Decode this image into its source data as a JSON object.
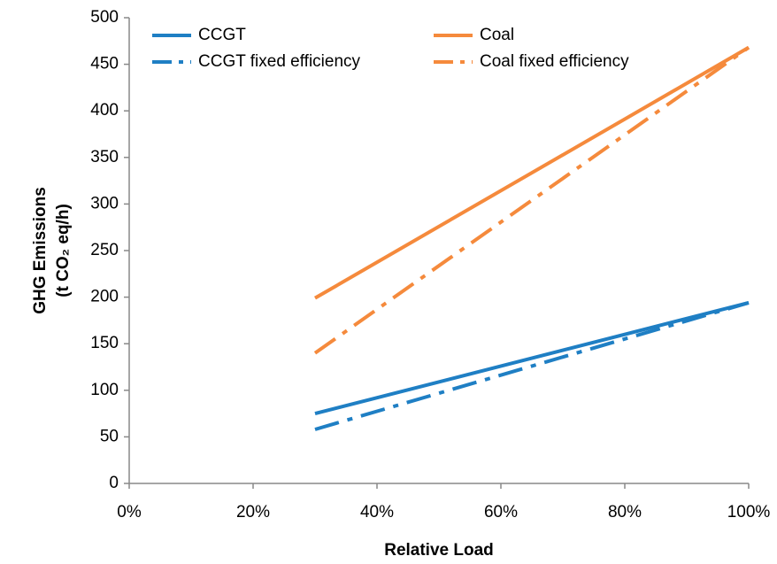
{
  "chart_data": {
    "type": "line",
    "x_label": "Relative Load",
    "y_label": [
      "GHG Emissions",
      "(t CO₂ eq/h)"
    ],
    "x": [
      30,
      100
    ],
    "series": [
      {
        "name": "CCGT",
        "color": "#1f7fc4",
        "dash": "solid",
        "values": [
          75,
          194
        ]
      },
      {
        "name": "Coal",
        "color": "#f58a3c",
        "dash": "solid",
        "values": [
          199,
          468
        ]
      },
      {
        "name": "CCGT fixed efficiency",
        "color": "#1f7fc4",
        "dash": "dashdot",
        "values": [
          58,
          194
        ]
      },
      {
        "name": "Coal fixed efficiency",
        "color": "#f58a3c",
        "dash": "dashdot",
        "values": [
          140,
          468
        ]
      }
    ],
    "xlim": [
      0,
      100
    ],
    "xticks": [
      {
        "value": 0,
        "label": "0%"
      },
      {
        "value": 20,
        "label": "20%"
      },
      {
        "value": 40,
        "label": "40%"
      },
      {
        "value": 60,
        "label": "60%"
      },
      {
        "value": 80,
        "label": "80%"
      },
      {
        "value": 100,
        "label": "100%"
      }
    ],
    "ylim": [
      0,
      500
    ],
    "yticks": [
      0,
      50,
      100,
      150,
      200,
      250,
      300,
      350,
      400,
      450,
      500
    ],
    "grid": false,
    "legend": "top"
  }
}
